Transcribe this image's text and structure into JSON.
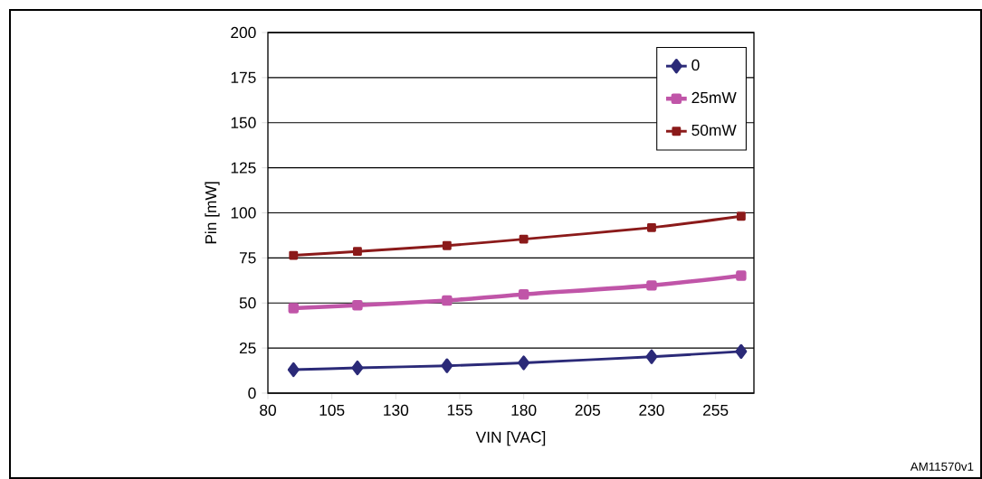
{
  "chart_data": {
    "type": "line",
    "xlabel": "VIN [VAC]",
    "ylabel": "Pin [mW]",
    "x": [
      90,
      115,
      150,
      180,
      230,
      265
    ],
    "series": [
      {
        "name": "0",
        "color": "#2b2a78",
        "marker": "diamond",
        "values": [
          13.0,
          14.0,
          15.2,
          16.8,
          20.2,
          23.1
        ]
      },
      {
        "name": "25mW",
        "color": "#c055a8",
        "marker": "square",
        "values": [
          47.1,
          48.7,
          51.4,
          54.8,
          59.7,
          65.2
        ]
      },
      {
        "name": "50mW",
        "color": "#8b1a1a",
        "marker": "square",
        "values": [
          76.4,
          78.6,
          81.8,
          85.4,
          91.8,
          98.1
        ]
      }
    ],
    "xlim": [
      80,
      270
    ],
    "ylim": [
      0,
      200
    ],
    "xticks": [
      80,
      105,
      130,
      155,
      180,
      205,
      230,
      255
    ],
    "yticks": [
      0,
      25,
      50,
      75,
      100,
      125,
      150,
      175,
      200
    ],
    "grid": "y",
    "legend": "top right",
    "annotations": [
      "AM11570v1"
    ]
  }
}
